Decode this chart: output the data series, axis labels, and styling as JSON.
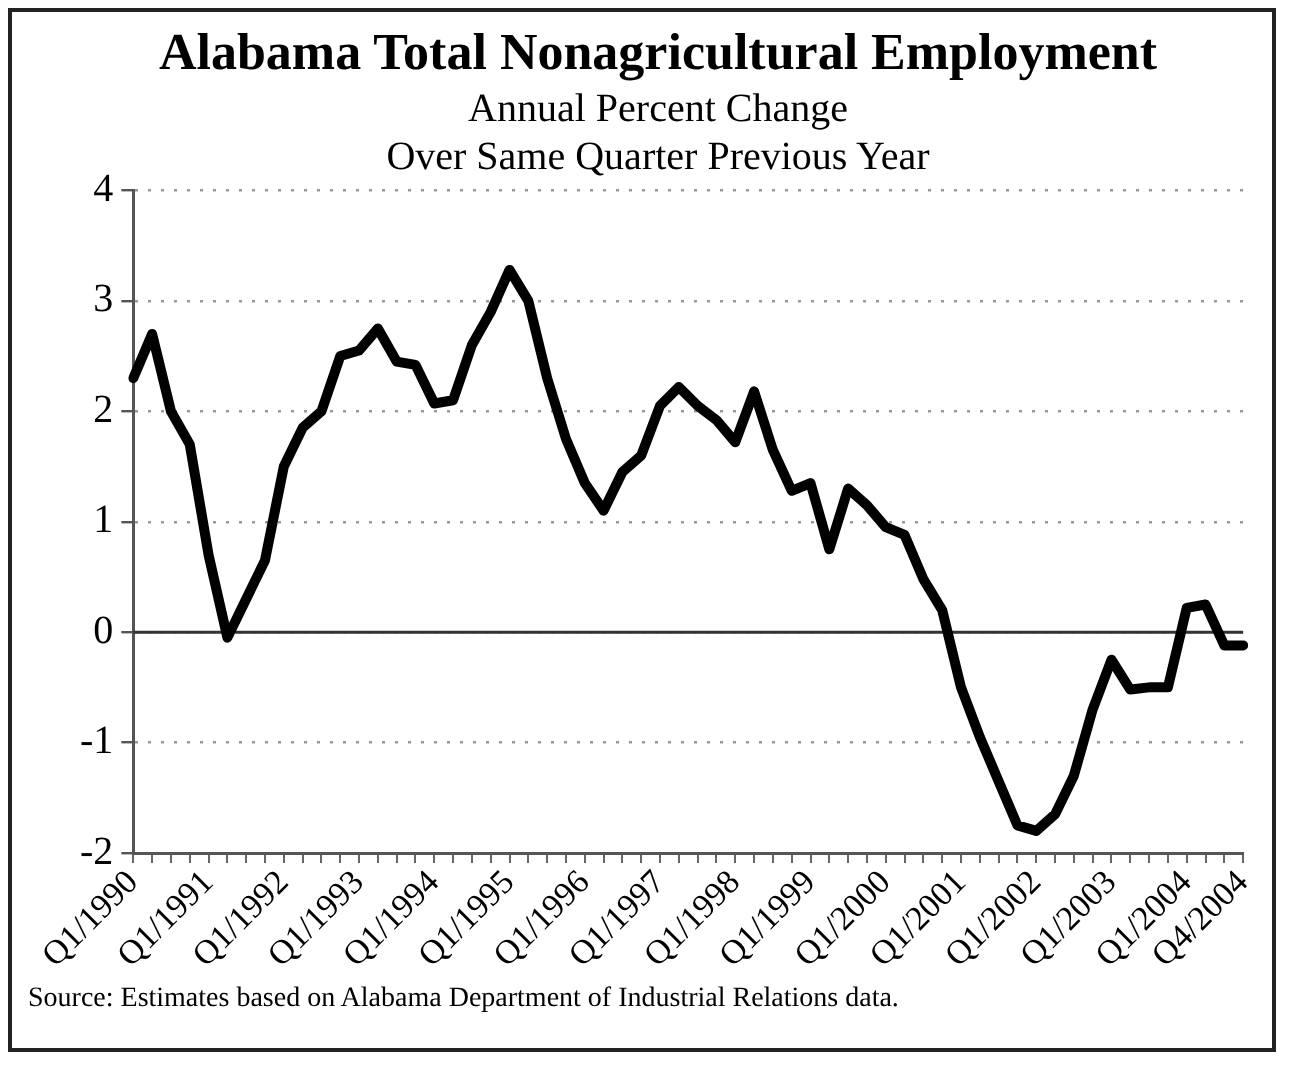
{
  "chart_data": {
    "type": "line",
    "title": "Alabama Total Nonagricultural Employment",
    "subtitle": "Annual Percent Change\nOver Same Quarter Previous Year",
    "categories": [
      "Q1/1990",
      null,
      null,
      null,
      "Q1/1991",
      null,
      null,
      null,
      "Q1/1992",
      null,
      null,
      null,
      "Q1/1993",
      null,
      null,
      null,
      "Q1/1994",
      null,
      null,
      null,
      "Q1/1995",
      null,
      null,
      null,
      "Q1/1996",
      null,
      null,
      null,
      "Q1/1997",
      null,
      null,
      null,
      "Q1/1998",
      null,
      null,
      null,
      "Q1/1999",
      null,
      null,
      null,
      "Q1/2000",
      null,
      null,
      null,
      "Q1/2001",
      null,
      null,
      null,
      "Q1/2002",
      null,
      null,
      null,
      "Q1/2003",
      null,
      null,
      null,
      "Q1/2004",
      null,
      null,
      "Q4/2004"
    ],
    "series": [
      {
        "color": "#000000",
        "values": [
          2.3,
          2.7,
          2.0,
          1.7,
          0.7,
          -0.05,
          0.3,
          0.65,
          1.5,
          1.85,
          2.0,
          2.5,
          2.55,
          2.75,
          2.45,
          2.42,
          2.07,
          2.1,
          2.6,
          2.9,
          3.28,
          3.0,
          2.3,
          1.75,
          1.35,
          1.1,
          1.45,
          1.6,
          2.05,
          2.22,
          2.05,
          1.92,
          1.72,
          2.18,
          1.65,
          1.28,
          1.35,
          0.75,
          1.3,
          1.15,
          0.95,
          0.88,
          0.48,
          0.2,
          -0.5,
          -0.95,
          -1.35,
          -1.75,
          -1.8,
          -1.65,
          -1.3,
          -0.7,
          -0.25,
          -0.52,
          -0.5,
          -0.5,
          0.22,
          0.25,
          -0.12,
          -0.12
        ]
      }
    ],
    "ylim": [
      -2,
      4
    ],
    "yticks": [
      -2,
      -1,
      0,
      1,
      2,
      3,
      4
    ],
    "grid": "y",
    "legend": false,
    "marker": "none",
    "line_style": "solid",
    "ref_lines": [
      {
        "axis": "y",
        "value": 0,
        "color": "#333333"
      }
    ],
    "annotations": [
      "Source:  Estimates based on Alabama Department of Industrial Relations data."
    ]
  }
}
